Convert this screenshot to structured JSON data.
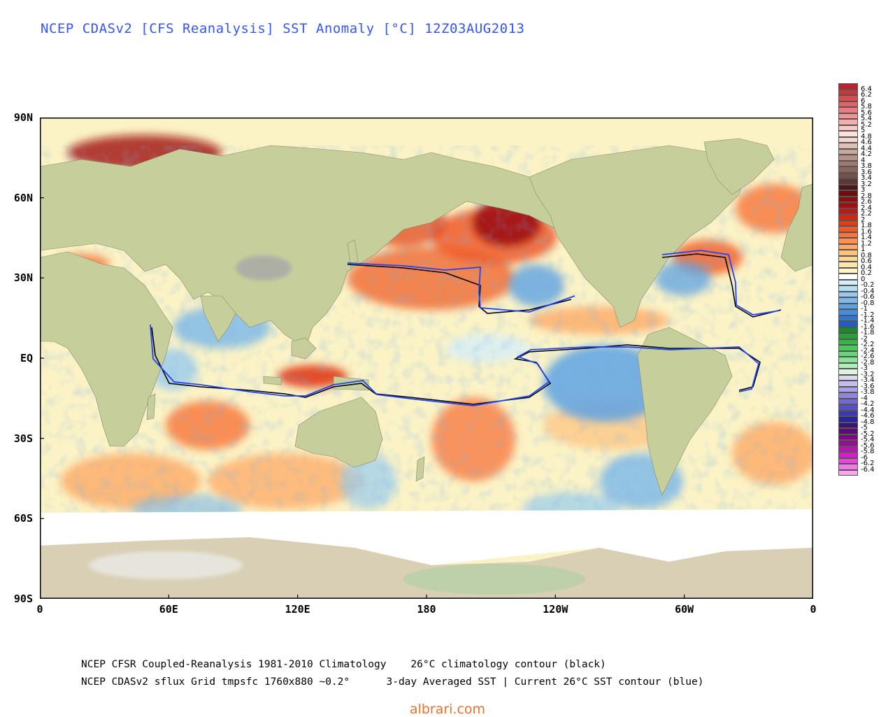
{
  "title": "NCEP CDASv2 [CFS Reanalysis] SST Anomaly [°C] 12Z03AUG2013",
  "map": {
    "lat_labels": [
      {
        "text": "90N",
        "lat": 90
      },
      {
        "text": "60N",
        "lat": 60
      },
      {
        "text": "30N",
        "lat": 30
      },
      {
        "text": "EQ",
        "lat": 0
      },
      {
        "text": "30S",
        "lat": -30
      },
      {
        "text": "60S",
        "lat": -60
      },
      {
        "text": "90S",
        "lat": -90
      }
    ],
    "lon_labels": [
      {
        "text": "0",
        "lon": 0
      },
      {
        "text": "60E",
        "lon": 60
      },
      {
        "text": "120E",
        "lon": 120
      },
      {
        "text": "180",
        "lon": 180
      },
      {
        "text": "120W",
        "lon": 240
      },
      {
        "text": "60W",
        "lon": 300
      },
      {
        "text": "0",
        "lon": 360
      }
    ],
    "colors": {
      "land": "#c6cf9c",
      "ocean": "#fbf3c6",
      "antarctica": "#d8cfb4",
      "sea_ice": "#ffffff",
      "frame": "#000000",
      "clim_contour": "#000000",
      "current_contour": "#2244ee"
    }
  },
  "colorbar": {
    "entries": [
      {
        "label": "6.4",
        "color": "#b8222c"
      },
      {
        "label": "6.2",
        "color": "#c8383c"
      },
      {
        "label": "6",
        "color": "#d64c50"
      },
      {
        "label": "5.8",
        "color": "#e06466"
      },
      {
        "label": "5.6",
        "color": "#e87c7e"
      },
      {
        "label": "5.4",
        "color": "#f09496"
      },
      {
        "label": "5.2",
        "color": "#f6acae"
      },
      {
        "label": "5",
        "color": "#fac6c6"
      },
      {
        "label": "4.8",
        "color": "#fde0dc"
      },
      {
        "label": "4.6",
        "color": "#f2d6cc"
      },
      {
        "label": "4.4",
        "color": "#dcc0b4"
      },
      {
        "label": "4.2",
        "color": "#c9a89a"
      },
      {
        "label": "4",
        "color": "#b6918a"
      },
      {
        "label": "3.8",
        "color": "#a07a72"
      },
      {
        "label": "3.6",
        "color": "#8c665e"
      },
      {
        "label": "3.4",
        "color": "#76504a"
      },
      {
        "label": "3.2",
        "color": "#5e3634"
      },
      {
        "label": "3",
        "color": "#4a1a1a"
      },
      {
        "label": "2.8",
        "color": "#6a0e0e"
      },
      {
        "label": "2.6",
        "color": "#860e0e"
      },
      {
        "label": "2.4",
        "color": "#a01212"
      },
      {
        "label": "2.2",
        "color": "#b81818"
      },
      {
        "label": "2",
        "color": "#cc2a14"
      },
      {
        "label": "1.8",
        "color": "#e03c16"
      },
      {
        "label": "1.6",
        "color": "#f05a28"
      },
      {
        "label": "1.4",
        "color": "#f8743a"
      },
      {
        "label": "1.2",
        "color": "#fc9050"
      },
      {
        "label": "1",
        "color": "#fdaa66"
      },
      {
        "label": "0.8",
        "color": "#fec27e"
      },
      {
        "label": "0.6",
        "color": "#fed694"
      },
      {
        "label": "0.4",
        "color": "#fee6a8"
      },
      {
        "label": "0.2",
        "color": "#fff4c2"
      },
      {
        "label": "0",
        "color": "#ffffff"
      },
      {
        "label": "-0.2",
        "color": "#d4eef8"
      },
      {
        "label": "-0.4",
        "color": "#b6def2"
      },
      {
        "label": "-0.6",
        "color": "#98ccee"
      },
      {
        "label": "-0.8",
        "color": "#7ab8ea"
      },
      {
        "label": "-1",
        "color": "#5ea2e4"
      },
      {
        "label": "-1.2",
        "color": "#468cdc"
      },
      {
        "label": "-1.4",
        "color": "#3274d0"
      },
      {
        "label": "-1.6",
        "color": "#205ebe"
      },
      {
        "label": "-1.8",
        "color": "#1a8a28"
      },
      {
        "label": "-2",
        "color": "#26a236"
      },
      {
        "label": "-2.2",
        "color": "#36b646"
      },
      {
        "label": "-2.4",
        "color": "#4cc85a"
      },
      {
        "label": "-2.6",
        "color": "#68d676"
      },
      {
        "label": "-2.8",
        "color": "#8ae296"
      },
      {
        "label": "-3",
        "color": "#b4ecbc"
      },
      {
        "label": "-3.2",
        "color": "#dcf6de"
      },
      {
        "label": "-3.4",
        "color": "#dcd8f4"
      },
      {
        "label": "-3.6",
        "color": "#c4beee"
      },
      {
        "label": "-3.8",
        "color": "#aaa2e6"
      },
      {
        "label": "-4",
        "color": "#8e86dc"
      },
      {
        "label": "-4.2",
        "color": "#726ad0"
      },
      {
        "label": "-4.4",
        "color": "#5650c2"
      },
      {
        "label": "-4.6",
        "color": "#3c38b2"
      },
      {
        "label": "-4.8",
        "color": "#28229e"
      },
      {
        "label": "-5",
        "color": "#3a1670"
      },
      {
        "label": "-5.2",
        "color": "#5a0e72"
      },
      {
        "label": "-5.4",
        "color": "#7a0c80"
      },
      {
        "label": "-5.6",
        "color": "#960e92"
      },
      {
        "label": "-5.8",
        "color": "#b614ae"
      },
      {
        "label": "-6",
        "color": "#d020c6"
      },
      {
        "label": "-6.2",
        "color": "#e646da"
      },
      {
        "label": "-6.4",
        "color": "#f478e8"
      },
      {
        "label": "",
        "color": "#f8a8f0"
      }
    ]
  },
  "footer": {
    "line1": "NCEP CFSR Coupled-Reanalysis 1981-2010 Climatology    26°C climatology contour (black)",
    "line2": "NCEP CDASv2 sflux Grid tmpsfc 1760x880 ~0.2°      3-day Averaged SST | Current 26°C SST contour (blue)"
  },
  "credit": "albrari.com"
}
